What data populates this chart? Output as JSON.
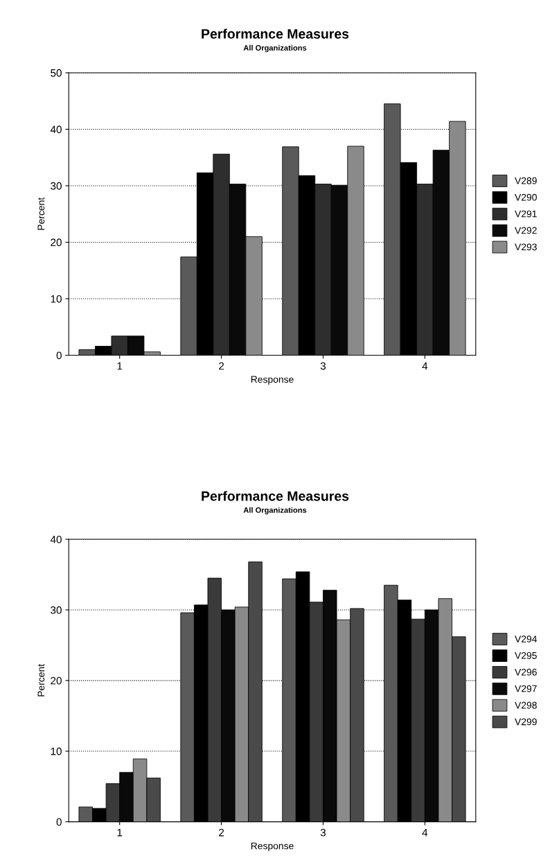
{
  "chart_data": [
    {
      "type": "bar",
      "title": "Performance Measures",
      "subtitle": "All Organizations",
      "xlabel": "Response",
      "ylabel": "Percent",
      "categories": [
        "1",
        "2",
        "3",
        "4"
      ],
      "ylim": [
        0,
        50
      ],
      "yticks": [
        0,
        10,
        20,
        30,
        40,
        50
      ],
      "grid": "y",
      "legend": "right",
      "series": [
        {
          "name": "V289",
          "color": "#5a5a5a",
          "values": [
            1.0,
            17.4,
            36.9,
            44.5
          ]
        },
        {
          "name": "V290",
          "color": "#000000",
          "values": [
            1.6,
            32.3,
            31.8,
            34.1
          ]
        },
        {
          "name": "V291",
          "color": "#2e2e2e",
          "values": [
            3.4,
            35.6,
            30.3,
            30.3
          ]
        },
        {
          "name": "V292",
          "color": "#0a0a0a",
          "values": [
            3.4,
            30.3,
            30.1,
            36.3
          ]
        },
        {
          "name": "V293",
          "color": "#8a8a8a",
          "values": [
            0.6,
            21.0,
            37.0,
            41.4
          ]
        }
      ]
    },
    {
      "type": "bar",
      "title": "Performance Measures",
      "subtitle": "All Organizations",
      "xlabel": "Response",
      "ylabel": "Percent",
      "categories": [
        "1",
        "2",
        "3",
        "4"
      ],
      "ylim": [
        0,
        40
      ],
      "yticks": [
        0,
        10,
        20,
        30,
        40
      ],
      "grid": "y",
      "legend": "right",
      "series": [
        {
          "name": "V294",
          "color": "#5a5a5a",
          "values": [
            2.1,
            29.6,
            34.4,
            33.5
          ]
        },
        {
          "name": "V295",
          "color": "#000000",
          "values": [
            1.9,
            30.7,
            35.4,
            31.4
          ]
        },
        {
          "name": "V296",
          "color": "#3a3a3a",
          "values": [
            5.4,
            34.5,
            31.1,
            28.7
          ]
        },
        {
          "name": "V297",
          "color": "#0a0a0a",
          "values": [
            7.0,
            30.0,
            32.8,
            30.0
          ]
        },
        {
          "name": "V298",
          "color": "#8a8a8a",
          "values": [
            8.9,
            30.4,
            28.6,
            31.6
          ]
        },
        {
          "name": "V299",
          "color": "#4a4a4a",
          "values": [
            6.2,
            36.8,
            30.2,
            26.2
          ]
        }
      ]
    }
  ]
}
